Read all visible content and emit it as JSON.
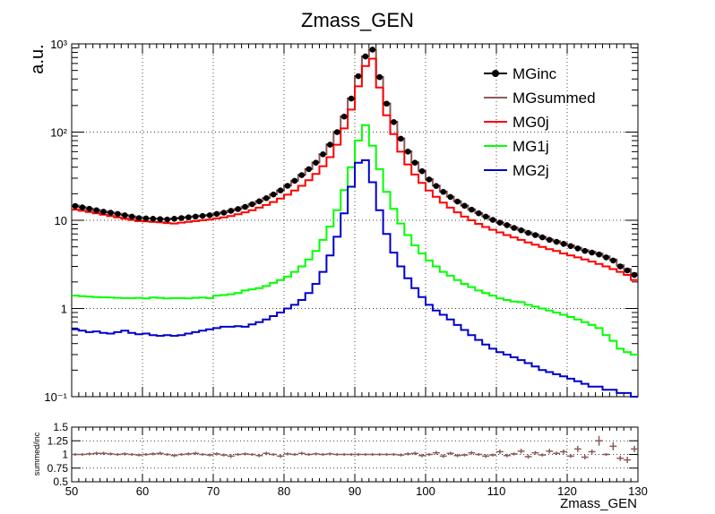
{
  "title": "Zmass_GEN",
  "chart_data": [
    {
      "type": "line",
      "title": "Zmass_GEN",
      "ylabel": "a.u.",
      "xlabel": "",
      "xlim": [
        50,
        130
      ],
      "ylim": [
        0.1,
        1000
      ],
      "yscale": "log",
      "grid": true,
      "legend_position": "top-right",
      "x_ticks": [
        "50",
        "60",
        "70",
        "80",
        "90",
        "100",
        "110",
        "120",
        "130"
      ],
      "y_ticks": [
        "10⁻¹",
        "1",
        "10",
        "10²",
        "10³"
      ],
      "x_bin_centers": [
        50.5,
        51.5,
        52.5,
        53.5,
        54.5,
        55.5,
        56.5,
        57.5,
        58.5,
        59.5,
        60.5,
        61.5,
        62.5,
        63.5,
        64.5,
        65.5,
        66.5,
        67.5,
        68.5,
        69.5,
        70.5,
        71.5,
        72.5,
        73.5,
        74.5,
        75.5,
        76.5,
        77.5,
        78.5,
        79.5,
        80.5,
        81.5,
        82.5,
        83.5,
        84.5,
        85.5,
        86.5,
        87.5,
        88.5,
        89.5,
        90.5,
        91.5,
        92.5,
        93.5,
        94.5,
        95.5,
        96.5,
        97.5,
        98.5,
        99.5,
        100.5,
        101.5,
        102.5,
        103.5,
        104.5,
        105.5,
        106.5,
        107.5,
        108.5,
        109.5,
        110.5,
        111.5,
        112.5,
        113.5,
        114.5,
        115.5,
        116.5,
        117.5,
        118.5,
        119.5,
        120.5,
        121.5,
        122.5,
        123.5,
        124.5,
        125.5,
        126.5,
        127.5,
        128.5,
        129.5
      ],
      "series": [
        {
          "name": "MGinc",
          "color": "#000000",
          "style": "markers",
          "values": [
            14.5,
            14,
            13.5,
            13,
            12.5,
            12.2,
            11.8,
            11.4,
            11.0,
            10.6,
            10.5,
            10.4,
            10.3,
            10.2,
            10.4,
            10.6,
            10.8,
            11.0,
            11.2,
            11.4,
            11.8,
            12.2,
            12.8,
            13.4,
            14.2,
            15.2,
            16.4,
            17.8,
            19.6,
            21.8,
            24.6,
            28,
            32.5,
            38,
            45,
            56,
            72,
            100,
            150,
            240,
            430,
            720,
            860,
            420,
            210,
            130,
            84,
            60,
            45,
            36,
            29,
            24.5,
            21,
            18.4,
            16.3,
            14.6,
            13.2,
            12.0,
            11.0,
            10.1,
            9.4,
            8.8,
            8.2,
            7.7,
            7.2,
            6.8,
            6.4,
            6.0,
            5.7,
            5.4,
            5.1,
            4.8,
            4.5,
            4.3,
            4.1,
            3.8,
            3.5,
            3.0,
            2.7,
            2.4
          ]
        },
        {
          "name": "MGsummed",
          "color": "#8b5a5a",
          "style": "step",
          "values": [
            14.7,
            14.1,
            13.6,
            13.1,
            12.6,
            12.3,
            11.9,
            11.5,
            11.1,
            10.7,
            10.6,
            10.5,
            10.4,
            10.3,
            10.5,
            10.7,
            10.9,
            11.1,
            11.3,
            11.5,
            11.9,
            12.3,
            12.9,
            13.5,
            14.3,
            15.3,
            16.5,
            17.9,
            19.7,
            21.9,
            24.7,
            28.2,
            32.7,
            38.2,
            45.2,
            56.3,
            72.4,
            100.5,
            151,
            241,
            432,
            723,
            865,
            422,
            211,
            131,
            85,
            60.5,
            45.4,
            36.3,
            29.3,
            24.7,
            21.2,
            18.6,
            16.4,
            14.7,
            13.3,
            12.1,
            11.1,
            10.2,
            9.5,
            8.9,
            8.3,
            7.8,
            7.3,
            6.9,
            6.5,
            6.1,
            5.8,
            5.5,
            5.2,
            4.9,
            4.6,
            4.4,
            4.2,
            3.9,
            3.6,
            3.1,
            2.8,
            2.5
          ]
        },
        {
          "name": "MG0j",
          "color": "#ff0000",
          "style": "step",
          "values": [
            13.2,
            12.8,
            12.4,
            12.0,
            11.6,
            11.2,
            10.8,
            10.4,
            10.1,
            9.8,
            9.7,
            9.6,
            9.5,
            9.3,
            9.2,
            9.4,
            9.6,
            9.8,
            10.0,
            10.2,
            10.5,
            10.8,
            11.2,
            11.7,
            12.3,
            13.0,
            13.9,
            14.9,
            16.1,
            17.6,
            19.5,
            21.8,
            24.6,
            28.4,
            33.5,
            41,
            52,
            72,
            110,
            180,
            330,
            560,
            680,
            320,
            155,
            95,
            60,
            43,
            33,
            26.5,
            21.8,
            18.5,
            15.9,
            13.9,
            12.3,
            11.0,
            10.0,
            9.1,
            8.4,
            7.8,
            7.3,
            6.8,
            6.4,
            6.0,
            5.6,
            5.3,
            5.0,
            4.7,
            4.5,
            4.2,
            4.0,
            3.8,
            3.6,
            3.4,
            3.2,
            3.0,
            2.8,
            2.6,
            2.4,
            2.1
          ]
        },
        {
          "name": "MG1j",
          "color": "#00ff00",
          "style": "step",
          "values": [
            1.4,
            1.38,
            1.36,
            1.35,
            1.34,
            1.33,
            1.32,
            1.31,
            1.31,
            1.32,
            1.3,
            1.33,
            1.32,
            1.3,
            1.31,
            1.31,
            1.3,
            1.32,
            1.33,
            1.31,
            1.4,
            1.42,
            1.45,
            1.5,
            1.6,
            1.65,
            1.7,
            1.8,
            1.95,
            2.1,
            2.3,
            2.6,
            3.0,
            3.6,
            4.5,
            6.0,
            8.5,
            13,
            22,
            40,
            80,
            120,
            70,
            38,
            21,
            13.5,
            9.2,
            6.8,
            5.2,
            4.2,
            3.5,
            3.0,
            2.6,
            2.35,
            2.1,
            1.9,
            1.75,
            1.6,
            1.5,
            1.4,
            1.3,
            1.25,
            1.2,
            1.18,
            1.1,
            1.05,
            1.0,
            0.95,
            0.9,
            0.85,
            0.8,
            0.75,
            0.7,
            0.65,
            0.6,
            0.5,
            0.43,
            0.35,
            0.32,
            0.3
          ]
        },
        {
          "name": "MG2j",
          "color": "#0000cc",
          "style": "step",
          "values": [
            0.58,
            0.56,
            0.54,
            0.55,
            0.53,
            0.52,
            0.54,
            0.56,
            0.53,
            0.51,
            0.52,
            0.5,
            0.49,
            0.5,
            0.49,
            0.5,
            0.52,
            0.54,
            0.56,
            0.58,
            0.6,
            0.62,
            0.62,
            0.63,
            0.62,
            0.66,
            0.7,
            0.75,
            0.82,
            0.9,
            1.0,
            1.1,
            1.25,
            1.5,
            1.9,
            2.6,
            4.0,
            6.5,
            12,
            24,
            45,
            48,
            27,
            13,
            7.0,
            4.3,
            3.0,
            2.2,
            1.7,
            1.35,
            1.1,
            0.95,
            0.85,
            0.75,
            0.65,
            0.57,
            0.5,
            0.44,
            0.39,
            0.35,
            0.32,
            0.3,
            0.28,
            0.26,
            0.24,
            0.22,
            0.2,
            0.19,
            0.18,
            0.17,
            0.16,
            0.15,
            0.14,
            0.13,
            0.13,
            0.12,
            0.12,
            0.11,
            0.11,
            0.1
          ]
        }
      ]
    },
    {
      "type": "scatter",
      "ylabel": "summed/inc",
      "xlabel": "Zmass_GEN",
      "xlim": [
        50,
        130
      ],
      "ylim": [
        0.5,
        1.5
      ],
      "grid": true,
      "x_ticks": [
        "50",
        "60",
        "70",
        "80",
        "90",
        "100",
        "110",
        "120",
        "130"
      ],
      "y_ticks": [
        "0.5",
        "0.75",
        "1",
        "1.25",
        "1.5"
      ],
      "series": [
        {
          "name": "summed/inc",
          "color": "#8b5a5a",
          "x": [
            50.5,
            51.5,
            52.5,
            53.5,
            54.5,
            55.5,
            56.5,
            57.5,
            58.5,
            59.5,
            60.5,
            61.5,
            62.5,
            63.5,
            64.5,
            65.5,
            66.5,
            67.5,
            68.5,
            69.5,
            70.5,
            71.5,
            72.5,
            73.5,
            74.5,
            75.5,
            76.5,
            77.5,
            78.5,
            79.5,
            80.5,
            81.5,
            82.5,
            83.5,
            84.5,
            85.5,
            86.5,
            87.5,
            88.5,
            89.5,
            90.5,
            91.5,
            92.5,
            93.5,
            94.5,
            95.5,
            96.5,
            97.5,
            98.5,
            99.5,
            100.5,
            101.5,
            102.5,
            103.5,
            104.5,
            105.5,
            106.5,
            107.5,
            108.5,
            109.5,
            110.5,
            111.5,
            112.5,
            113.5,
            114.5,
            115.5,
            116.5,
            117.5,
            118.5,
            119.5,
            120.5,
            121.5,
            122.5,
            123.5,
            124.5,
            125.5,
            126.5,
            127.5,
            128.5,
            129.5
          ],
          "values": [
            1.0,
            1.0,
            1.01,
            1.02,
            1.02,
            1.01,
            1.0,
            1.01,
            1.0,
            0.99,
            1.0,
            1.01,
            1.02,
            1.0,
            0.98,
            1.0,
            1.01,
            1.02,
            1.0,
            0.99,
            1.01,
            0.99,
            0.97,
            1.0,
            1.01,
            1.0,
            0.98,
            1.02,
            1.0,
            0.97,
            1.01,
            1.0,
            1.02,
            1.0,
            1.01,
            1.0,
            1.01,
            1.0,
            1.0,
            1.0,
            1.0,
            1.0,
            1.0,
            1.0,
            1.0,
            1.0,
            0.99,
            1.01,
            1.02,
            0.98,
            1.0,
            1.03,
            0.97,
            1.02,
            0.98,
            0.99,
            1.03,
            1.0,
            0.97,
            0.99,
            1.05,
            0.98,
            1.01,
            1.06,
            0.96,
            1.03,
            0.99,
            1.06,
            1.02,
            1.05,
            0.97,
            1.1,
            0.95,
            1.05,
            1.25,
            1.0,
            1.15,
            0.93,
            0.9,
            1.1
          ]
        }
      ]
    }
  ]
}
